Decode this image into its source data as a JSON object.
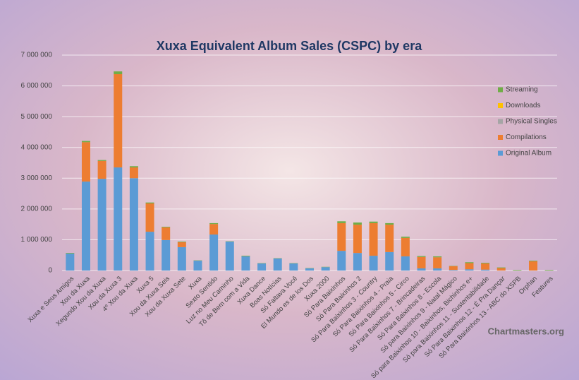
{
  "chart_data": {
    "type": "stacked_bar",
    "title": "Xuxa Equivalent Album Sales (CSPC) by era",
    "source": "Chartmasters.org",
    "categories": [
      "Xuxa e Seus Amigos",
      "Xou da Xuxa",
      "Xegundo Xou da Xuxa",
      "Xou da Xuxa 3",
      "4º Xou da Xuxa",
      "Xuxa 5",
      "Xou da Xuxa Seis",
      "Xou da Xuxa Sete",
      "Xuxa",
      "Sexto Sentido",
      "Luz no Meu Caminho",
      "Tô de Bem com a Vida",
      "Xuxa Dance",
      "Boas Notícias",
      "Só Faltava Você",
      "El Mundo es de los Dos",
      "Xuxa 2000",
      "Só Para Baixinhos",
      "Só Para Baixinhos 2",
      "Só Para Baixinhos 3 - Country",
      "Só Para Baixinhos 4 - Praia",
      "Só Para Baixinhos 5 - Circo",
      "Só Para Baixinhos 7 - Brincadeiras",
      "Só Para Baixinhos 8 - Escola",
      "Só para Baixinhos 9 - Natal Mágico",
      "Só para Baixinhos 10 - Baixinhos, Bichinhos e+",
      "Só para Baixinhos 11 - Sustentabilidade",
      "Só Para Baixinhos 12 - É Pra Dançar",
      "Só Para Baixinhos 13 - ABC do XSPB",
      "Orphan",
      "Features"
    ],
    "series": [
      {
        "name": "Original Album",
        "color": "#5b9bd5",
        "values": [
          550000,
          2890000,
          2980000,
          3350000,
          3000000,
          1260000,
          990000,
          760000,
          320000,
          1170000,
          940000,
          460000,
          230000,
          390000,
          230000,
          70000,
          110000,
          640000,
          570000,
          480000,
          600000,
          460000,
          70000,
          70000,
          20000,
          40000,
          30000,
          0,
          0,
          0,
          0
        ]
      },
      {
        "name": "Compilations",
        "color": "#ed7d31",
        "values": [
          0,
          1280000,
          580000,
          3030000,
          350000,
          920000,
          410000,
          160000,
          0,
          340000,
          0,
          0,
          0,
          0,
          0,
          0,
          0,
          900000,
          920000,
          1060000,
          890000,
          600000,
          370000,
          360000,
          120000,
          200000,
          200000,
          80000,
          0,
          300000,
          0
        ]
      },
      {
        "name": "Physical Singles",
        "color": "#a5a5a5",
        "values": [
          0,
          0,
          0,
          0,
          0,
          0,
          0,
          0,
          0,
          0,
          0,
          0,
          0,
          0,
          0,
          0,
          0,
          0,
          0,
          0,
          0,
          0,
          0,
          0,
          0,
          0,
          0,
          0,
          0,
          0,
          0
        ]
      },
      {
        "name": "Downloads",
        "color": "#ffc000",
        "values": [
          0,
          0,
          0,
          0,
          0,
          0,
          0,
          0,
          0,
          0,
          0,
          0,
          0,
          0,
          0,
          0,
          0,
          0,
          0,
          0,
          0,
          0,
          0,
          0,
          0,
          0,
          0,
          0,
          0,
          0,
          0
        ]
      },
      {
        "name": "Streaming",
        "color": "#70ad47",
        "values": [
          20000,
          40000,
          30000,
          90000,
          40000,
          30000,
          20000,
          20000,
          10000,
          30000,
          10000,
          20000,
          10000,
          10000,
          10000,
          10000,
          10000,
          60000,
          70000,
          50000,
          50000,
          40000,
          30000,
          30000,
          10000,
          30000,
          20000,
          20000,
          20000,
          20000,
          20000
        ]
      }
    ],
    "ylim": [
      0,
      7000000
    ],
    "yticks": [
      0,
      {
        "value": 1000000,
        "label": "1 000 000"
      },
      {
        "value": 2000000,
        "label": "2 000 000"
      },
      {
        "value": 3000000,
        "label": "3 000 000"
      },
      {
        "value": 4000000,
        "label": "4 000 000"
      },
      {
        "value": 5000000,
        "label": "5 000 000"
      },
      {
        "value": 6000000,
        "label": "6 000 000"
      },
      {
        "value": 7000000,
        "label": "7 000 000"
      }
    ],
    "grid": true,
    "legend": "right"
  }
}
